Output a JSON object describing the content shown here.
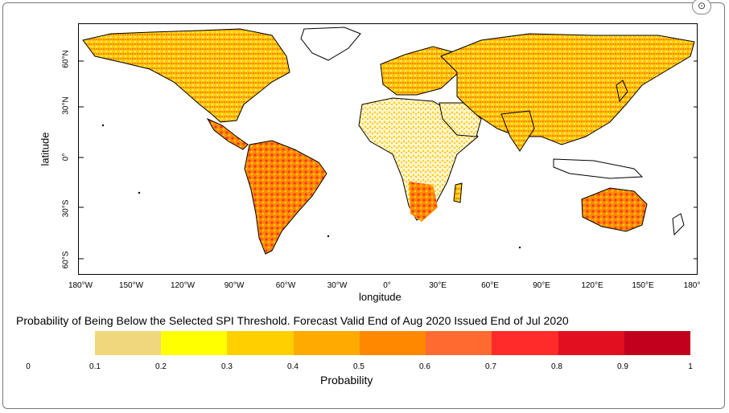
{
  "map": {
    "y_axis_title": "latitude",
    "x_axis_title": "longitude",
    "lat_ticks": [
      "60°N",
      "30°N",
      "0°",
      "30°S",
      "60°S"
    ],
    "lon_ticks": [
      "180°W",
      "150°W",
      "120°W",
      "90°W",
      "60°W",
      "30°W",
      "0°",
      "30°E",
      "60°E",
      "90°E",
      "120°E",
      "150°E",
      "180°"
    ],
    "caption": "Probability of Being Below the Selected SPI Threshold. Forecast Valid End of Aug 2020 Issued End of Jul 2020"
  },
  "colorbar": {
    "title": "Probability",
    "zero_label": "0",
    "ticks": [
      "0.1",
      "0.2",
      "0.3",
      "0.4",
      "0.5",
      "0.6",
      "0.7",
      "0.8",
      "0.9",
      "1"
    ],
    "colors": [
      "#efe0a0",
      "#f1d77c",
      "#ffff00",
      "#ffd000",
      "#ffaa00",
      "#ff8800",
      "#ff6a30",
      "#ff2a2a",
      "#e01020",
      "#c0001c"
    ]
  },
  "window": {
    "corner_button": "⊙"
  }
}
